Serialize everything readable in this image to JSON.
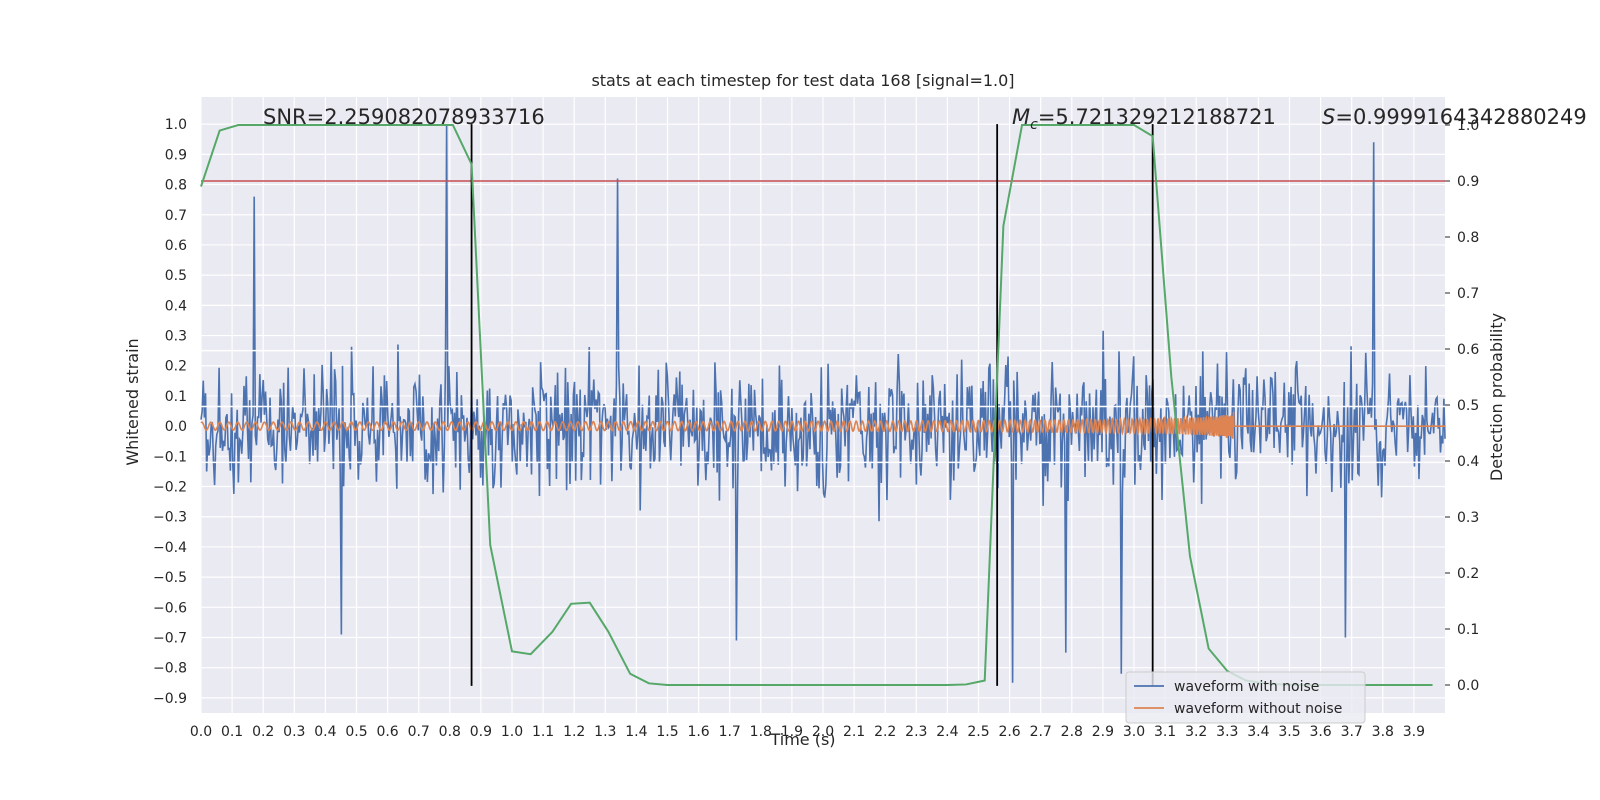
{
  "chart_data": {
    "type": "line",
    "title": "stats at each timestep for test data 168 [signal=1.0]",
    "xlabel": "Time (s)",
    "ylabel": "Whitened strain",
    "y2label": "Detection probability",
    "xlim": [
      0.0,
      4.0
    ],
    "ylim": [
      -0.95,
      1.09
    ],
    "y2lim": [
      -0.05,
      1.05
    ],
    "x_ticks": [
      "0.0",
      "0.1",
      "0.2",
      "0.3",
      "0.4",
      "0.5",
      "0.6",
      "0.7",
      "0.8",
      "0.9",
      "1.0",
      "1.1",
      "1.2",
      "1.3",
      "1.4",
      "1.5",
      "1.6",
      "1.7",
      "1.8",
      "1.9",
      "2.0",
      "2.1",
      "2.2",
      "2.3",
      "2.4",
      "2.5",
      "2.6",
      "2.7",
      "2.8",
      "2.9",
      "3.0",
      "3.1",
      "3.2",
      "3.3",
      "3.4",
      "3.5",
      "3.6",
      "3.7",
      "3.8",
      "3.9"
    ],
    "y_ticks": [
      "1.0",
      "0.9",
      "0.8",
      "0.7",
      "0.6",
      "0.5",
      "0.4",
      "0.3",
      "0.2",
      "0.1",
      "0.0",
      "−0.1",
      "−0.2",
      "−0.3",
      "−0.4",
      "−0.5",
      "−0.6",
      "−0.7",
      "−0.8",
      "−0.9"
    ],
    "y2_ticks": [
      "1.0",
      "0.9",
      "0.8",
      "0.7",
      "0.6",
      "0.5",
      "0.4",
      "0.3",
      "0.2",
      "0.1",
      "0.0"
    ],
    "annotations": {
      "snr": "SNR=2.259082078933716",
      "mc_symbol": "M",
      "mc_sub": "c",
      "mc_value": "=5.721329212188721",
      "s_symbol": "S",
      "s_value": "=0.9999164342880249"
    },
    "threshold": {
      "axis": "y2",
      "value": 0.9,
      "color": "#c44e52"
    },
    "vlines": [
      0.87,
      2.56,
      3.06
    ],
    "vline_range": [
      -0.86,
      1.0
    ],
    "noise_series": {
      "name": "waveform with noise",
      "color": "#4c72b0",
      "axis": "y",
      "n_points": 1100,
      "typical_range": [
        -0.45,
        0.45
      ],
      "extremes": [
        {
          "x": 0.79,
          "y": 1.0
        },
        {
          "x": 3.77,
          "y": 0.94
        },
        {
          "x": 1.34,
          "y": 0.82
        },
        {
          "x": 0.17,
          "y": 0.76
        },
        {
          "x": 2.61,
          "y": -0.85
        },
        {
          "x": 2.96,
          "y": -0.82
        },
        {
          "x": 0.45,
          "y": -0.69
        },
        {
          "x": 3.68,
          "y": -0.7
        },
        {
          "x": 1.72,
          "y": -0.71
        },
        {
          "x": 2.78,
          "y": -0.75
        }
      ]
    },
    "clean_series": {
      "name": "waveform without noise",
      "color": "#dd8452",
      "axis": "y",
      "chirp_start": 0.0,
      "chirp_end": 3.32,
      "base_amplitude": 0.013,
      "peak_amplitude": 0.09,
      "flat_after": 3.32
    },
    "probability_series": {
      "name": "Detection probability",
      "color": "#55a868",
      "axis": "y2",
      "x": [
        0.0,
        0.06,
        0.12,
        0.18,
        0.24,
        0.3,
        0.36,
        0.42,
        0.48,
        0.54,
        0.6,
        0.66,
        0.72,
        0.78,
        0.81,
        0.87,
        0.93,
        1.0,
        1.06,
        1.13,
        1.19,
        1.25,
        1.31,
        1.38,
        1.44,
        1.5,
        1.56,
        1.62,
        1.68,
        1.74,
        1.8,
        1.86,
        1.92,
        1.98,
        2.04,
        2.1,
        2.16,
        2.22,
        2.28,
        2.34,
        2.4,
        2.46,
        2.52,
        2.58,
        2.64,
        2.7,
        2.76,
        2.82,
        2.88,
        2.94,
        3.0,
        3.06,
        3.12,
        3.18,
        3.24,
        3.3,
        3.36,
        3.42,
        3.48,
        3.54,
        3.6,
        3.66,
        3.72,
        3.78,
        3.84,
        3.9,
        3.96
      ],
      "y": [
        0.89,
        0.99,
        1.0,
        1.0,
        1.0,
        1.0,
        1.0,
        1.0,
        1.0,
        1.0,
        1.0,
        1.0,
        1.0,
        1.0,
        1.0,
        0.93,
        0.25,
        0.06,
        0.055,
        0.095,
        0.145,
        0.147,
        0.095,
        0.02,
        0.003,
        0.0,
        0.0,
        0.0,
        0.0,
        0.0,
        0.0,
        0.0,
        0.0,
        0.0,
        0.0,
        0.0,
        0.0,
        0.0,
        0.0,
        0.0,
        0.0,
        0.001,
        0.008,
        0.82,
        1.0,
        1.0,
        1.0,
        1.0,
        1.0,
        1.0,
        1.0,
        0.98,
        0.55,
        0.23,
        0.065,
        0.025,
        0.008,
        0.003,
        0.001,
        0.0,
        0.0,
        0.0,
        0.0,
        0.0,
        0.0,
        0.0,
        0.0
      ]
    },
    "white_hlines_y": [
      0.25,
      0.065,
      -0.12
    ],
    "legend": {
      "placement": "lower-right",
      "entries": [
        {
          "label": "waveform with noise",
          "color": "#4c72b0"
        },
        {
          "label": "waveform without noise",
          "color": "#dd8452"
        }
      ]
    },
    "style": {
      "plot_bg": "#eaeaf2",
      "grid": "#ffffff",
      "text": "#262626"
    }
  }
}
